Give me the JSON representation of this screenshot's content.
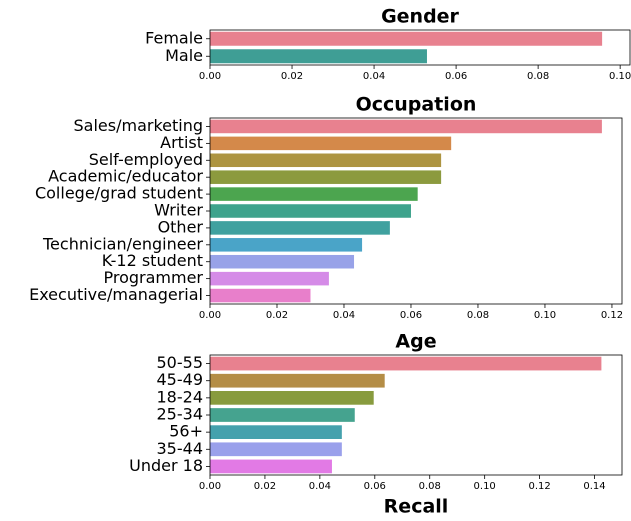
{
  "chart_data": [
    {
      "type": "barh",
      "title": "Gender",
      "categories": [
        "Female",
        "Male"
      ],
      "values": [
        0.0956,
        0.0529
      ],
      "colors": [
        "#e8818f",
        "#3f9e95"
      ],
      "xlim": [
        0,
        0.1024
      ],
      "xticks": [
        {
          "value": 0,
          "label": "0.00"
        },
        {
          "value": 0.02,
          "label": "0.02"
        },
        {
          "value": 0.04,
          "label": "0.04"
        },
        {
          "value": 0.06,
          "label": "0.06"
        },
        {
          "value": 0.08,
          "label": "0.08"
        },
        {
          "value": 0.1,
          "label": "0.10"
        }
      ]
    },
    {
      "type": "barh",
      "title": "Occupation",
      "categories": [
        "Sales/marketing",
        "Artist",
        "Self-employed",
        "Academic/educator",
        "College/grad student",
        "Writer",
        "Other",
        "Technician/engineer",
        "K-12 student",
        "Programmer",
        "Executive/managerial"
      ],
      "values": [
        0.117,
        0.072,
        0.069,
        0.069,
        0.062,
        0.06,
        0.0537,
        0.0454,
        0.043,
        0.0355,
        0.03
      ],
      "colors": [
        "#e8818f",
        "#d4894a",
        "#ad9441",
        "#8c9a3e",
        "#4ca54f",
        "#3ea38c",
        "#40a19f",
        "#4aa4c8",
        "#98a2e8",
        "#d58be7",
        "#e87fcb"
      ],
      "xlim": [
        0,
        0.123
      ],
      "xticks": [
        {
          "value": 0,
          "label": "0.00"
        },
        {
          "value": 0.02,
          "label": "0.02"
        },
        {
          "value": 0.04,
          "label": "0.04"
        },
        {
          "value": 0.06,
          "label": "0.06"
        },
        {
          "value": 0.08,
          "label": "0.08"
        },
        {
          "value": 0.1,
          "label": "0.10"
        },
        {
          "value": 0.12,
          "label": "0.12"
        }
      ]
    },
    {
      "type": "barh",
      "title": "Age",
      "xlabel": "Recall",
      "categories": [
        "50-55",
        "45-49",
        "18-24",
        "25-34",
        "56+",
        "35-44",
        "Under 18"
      ],
      "values": [
        0.1425,
        0.0636,
        0.0596,
        0.0527,
        0.048,
        0.048,
        0.0444
      ],
      "colors": [
        "#e8818f",
        "#b48d46",
        "#889b3e",
        "#45a38f",
        "#45a1ad",
        "#9aa0eb",
        "#e27ae5"
      ],
      "xlim": [
        0,
        0.15
      ],
      "xticks": [
        {
          "value": 0,
          "label": "0.00"
        },
        {
          "value": 0.02,
          "label": "0.02"
        },
        {
          "value": 0.04,
          "label": "0.04"
        },
        {
          "value": 0.06,
          "label": "0.06"
        },
        {
          "value": 0.08,
          "label": "0.08"
        },
        {
          "value": 0.1,
          "label": "0.10"
        },
        {
          "value": 0.12,
          "label": "0.12"
        },
        {
          "value": 0.14,
          "label": "0.14"
        }
      ]
    }
  ]
}
